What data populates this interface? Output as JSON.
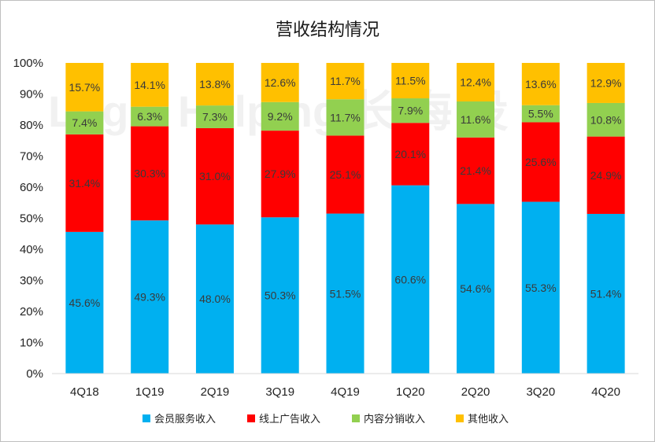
{
  "chart_data": {
    "type": "bar",
    "stacked": true,
    "title": "营收结构情况",
    "categories": [
      "4Q18",
      "1Q19",
      "2Q19",
      "3Q19",
      "4Q19",
      "1Q20",
      "2Q20",
      "3Q20",
      "4Q20"
    ],
    "series": [
      {
        "name": "会员服务收入",
        "color": "#00B0F0",
        "values": [
          45.6,
          49.3,
          48.0,
          50.3,
          51.5,
          60.6,
          54.6,
          55.3,
          51.4
        ]
      },
      {
        "name": "线上广告收入",
        "color": "#FF0000",
        "values": [
          31.4,
          30.3,
          31.0,
          27.9,
          25.1,
          20.1,
          21.4,
          25.6,
          24.9
        ]
      },
      {
        "name": "内容分销收入",
        "color": "#92D050",
        "values": [
          7.4,
          6.3,
          7.3,
          9.2,
          11.7,
          7.9,
          11.6,
          5.5,
          10.8
        ]
      },
      {
        "name": "其他收入",
        "color": "#FFC000",
        "values": [
          15.7,
          14.1,
          13.8,
          12.6,
          11.7,
          11.5,
          12.4,
          13.6,
          12.9
        ]
      }
    ],
    "value_suffix": "%",
    "ylim": [
      0,
      100
    ],
    "yticks": [
      "0%",
      "10%",
      "20%",
      "30%",
      "40%",
      "50%",
      "60%",
      "70%",
      "80%",
      "90%",
      "100%"
    ],
    "grid": false,
    "legend_position": "bottom"
  }
}
